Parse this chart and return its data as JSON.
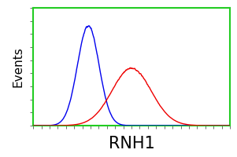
{
  "title": "",
  "xlabel": "RNH1",
  "ylabel": "Events",
  "xlabel_fontsize": 15,
  "ylabel_fontsize": 11,
  "background_color": "#ffffff",
  "border_color": "#22cc22",
  "border_linewidth": 1.5,
  "blue_color": "#0000ee",
  "red_color": "#ee0000",
  "blue_mean": 0.28,
  "blue_std": 0.055,
  "red_mean": 0.5,
  "red_std": 0.1,
  "blue_peak": 1.0,
  "red_peak": 0.58,
  "xlim": [
    0.0,
    1.0
  ],
  "ylim": [
    0.0,
    1.18
  ],
  "linewidth": 1.0,
  "figsize": [
    3.01,
    2.0
  ],
  "dpi": 100
}
